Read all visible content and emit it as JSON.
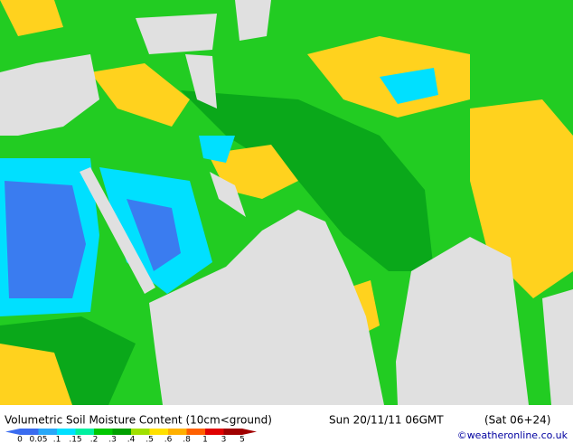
{
  "title": "Volumetric Soil Moisture Content (10cm<ground)",
  "date": "Sun 20/11/11 06GMT",
  "forecast": "(Sat 06+24)",
  "credit": "©weatheronline.co.uk",
  "legend": {
    "labels": [
      "0",
      "0.05",
      ".1",
      ".15",
      ".2",
      ".3",
      ".4",
      ".5",
      ".6",
      ".8",
      "1",
      "3",
      "5"
    ],
    "colors": [
      "#3a6cf0",
      "#28a8f8",
      "#00e0ff",
      "#00f0a0",
      "#00c800",
      "#00a000",
      "#a0e000",
      "#ffe000",
      "#ffb000",
      "#ff6000",
      "#e00000",
      "#a00000"
    ]
  }
}
